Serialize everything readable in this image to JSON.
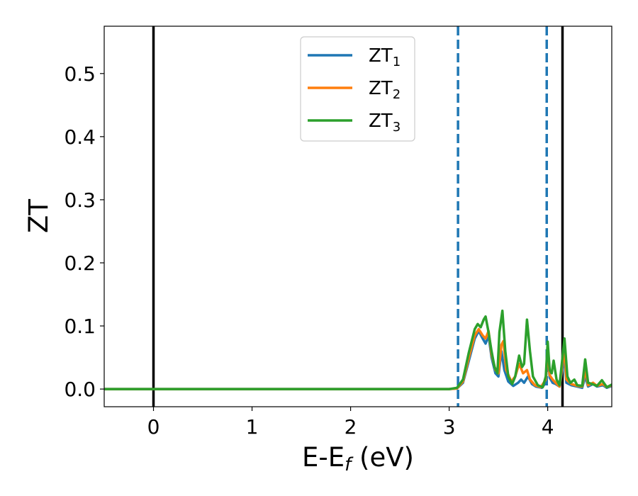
{
  "chart_data": {
    "type": "line",
    "xlabel": "E-E",
    "xlabel_sub": "f",
    "xlabel_unit": " (eV)",
    "ylabel": "ZT",
    "xlim": [
      -0.5,
      4.65
    ],
    "ylim": [
      -0.028,
      0.575
    ],
    "x_ticks": [
      0,
      1,
      2,
      3,
      4
    ],
    "x_tick_labels": [
      "0",
      "1",
      "2",
      "3",
      "4"
    ],
    "y_ticks": [
      0.0,
      0.1,
      0.2,
      0.3,
      0.4,
      0.5
    ],
    "y_tick_labels": [
      "0.0",
      "0.1",
      "0.2",
      "0.3",
      "0.4",
      "0.5"
    ],
    "grid": false,
    "legend_position": "top-center",
    "vertical_lines": [
      {
        "x": 0.0,
        "style": "solid",
        "color": "#000000"
      },
      {
        "x": 4.15,
        "style": "solid",
        "color": "#000000"
      },
      {
        "x": 3.09,
        "style": "dashed",
        "color": "#1f77b4"
      },
      {
        "x": 3.99,
        "style": "dashed",
        "color": "#1f77b4"
      }
    ],
    "series": [
      {
        "name": "ZT",
        "name_sub": "1",
        "color": "#1f77b4",
        "points": [
          [
            -0.5,
            0
          ],
          [
            3.0,
            0
          ],
          [
            3.08,
            0.001
          ],
          [
            3.14,
            0.01
          ],
          [
            3.2,
            0.045
          ],
          [
            3.26,
            0.08
          ],
          [
            3.3,
            0.092
          ],
          [
            3.34,
            0.08
          ],
          [
            3.37,
            0.072
          ],
          [
            3.4,
            0.085
          ],
          [
            3.43,
            0.05
          ],
          [
            3.47,
            0.025
          ],
          [
            3.5,
            0.02
          ],
          [
            3.53,
            0.06
          ],
          [
            3.56,
            0.03
          ],
          [
            3.6,
            0.012
          ],
          [
            3.65,
            0.005
          ],
          [
            3.7,
            0.01
          ],
          [
            3.73,
            0.015
          ],
          [
            3.76,
            0.01
          ],
          [
            3.8,
            0.02
          ],
          [
            3.84,
            0.008
          ],
          [
            3.88,
            0.004
          ],
          [
            3.94,
            0.002
          ],
          [
            3.98,
            0.01
          ],
          [
            4.0,
            0.06
          ],
          [
            4.02,
            0.018
          ],
          [
            4.05,
            0.01
          ],
          [
            4.08,
            0.008
          ],
          [
            4.12,
            0.004
          ],
          [
            4.17,
            0.05
          ],
          [
            4.19,
            0.01
          ],
          [
            4.24,
            0.006
          ],
          [
            4.3,
            0.004
          ],
          [
            4.35,
            0.002
          ],
          [
            4.38,
            0.02
          ],
          [
            4.41,
            0.004
          ],
          [
            4.46,
            0.008
          ],
          [
            4.5,
            0.004
          ],
          [
            4.56,
            0.006
          ],
          [
            4.6,
            0.002
          ],
          [
            4.65,
            0.005
          ]
        ]
      },
      {
        "name": "ZT",
        "name_sub": "2",
        "color": "#ff7f0e",
        "points": [
          [
            -0.5,
            0
          ],
          [
            3.0,
            0
          ],
          [
            3.08,
            0.001
          ],
          [
            3.14,
            0.012
          ],
          [
            3.2,
            0.05
          ],
          [
            3.26,
            0.085
          ],
          [
            3.3,
            0.095
          ],
          [
            3.34,
            0.085
          ],
          [
            3.37,
            0.08
          ],
          [
            3.4,
            0.092
          ],
          [
            3.43,
            0.055
          ],
          [
            3.47,
            0.03
          ],
          [
            3.5,
            0.025
          ],
          [
            3.53,
            0.07
          ],
          [
            3.55,
            0.076
          ],
          [
            3.58,
            0.03
          ],
          [
            3.63,
            0.012
          ],
          [
            3.67,
            0.02
          ],
          [
            3.71,
            0.04
          ],
          [
            3.75,
            0.025
          ],
          [
            3.79,
            0.03
          ],
          [
            3.82,
            0.015
          ],
          [
            3.87,
            0.006
          ],
          [
            3.93,
            0.003
          ],
          [
            3.98,
            0.015
          ],
          [
            4.0,
            0.065
          ],
          [
            4.02,
            0.022
          ],
          [
            4.05,
            0.015
          ],
          [
            4.08,
            0.01
          ],
          [
            4.12,
            0.004
          ],
          [
            4.17,
            0.065
          ],
          [
            4.19,
            0.015
          ],
          [
            4.24,
            0.008
          ],
          [
            4.3,
            0.005
          ],
          [
            4.35,
            0.004
          ],
          [
            4.38,
            0.03
          ],
          [
            4.41,
            0.006
          ],
          [
            4.46,
            0.01
          ],
          [
            4.5,
            0.005
          ],
          [
            4.56,
            0.008
          ],
          [
            4.6,
            0.003
          ],
          [
            4.65,
            0.006
          ]
        ]
      },
      {
        "name": "ZT",
        "name_sub": "3",
        "color": "#2ca02c",
        "points": [
          [
            -0.5,
            0
          ],
          [
            3.0,
            0
          ],
          [
            3.08,
            0.002
          ],
          [
            3.14,
            0.015
          ],
          [
            3.2,
            0.058
          ],
          [
            3.26,
            0.095
          ],
          [
            3.29,
            0.103
          ],
          [
            3.32,
            0.098
          ],
          [
            3.35,
            0.11
          ],
          [
            3.37,
            0.115
          ],
          [
            3.4,
            0.09
          ],
          [
            3.43,
            0.06
          ],
          [
            3.46,
            0.035
          ],
          [
            3.49,
            0.025
          ],
          [
            3.51,
            0.09
          ],
          [
            3.54,
            0.124
          ],
          [
            3.57,
            0.06
          ],
          [
            3.6,
            0.02
          ],
          [
            3.64,
            0.008
          ],
          [
            3.67,
            0.02
          ],
          [
            3.71,
            0.053
          ],
          [
            3.74,
            0.035
          ],
          [
            3.76,
            0.04
          ],
          [
            3.79,
            0.11
          ],
          [
            3.82,
            0.06
          ],
          [
            3.85,
            0.02
          ],
          [
            3.9,
            0.006
          ],
          [
            3.95,
            0.003
          ],
          [
            3.98,
            0.02
          ],
          [
            4.0,
            0.075
          ],
          [
            4.02,
            0.03
          ],
          [
            4.04,
            0.025
          ],
          [
            4.06,
            0.045
          ],
          [
            4.09,
            0.015
          ],
          [
            4.12,
            0.006
          ],
          [
            4.17,
            0.08
          ],
          [
            4.2,
            0.02
          ],
          [
            4.23,
            0.01
          ],
          [
            4.27,
            0.015
          ],
          [
            4.3,
            0.006
          ],
          [
            4.35,
            0.005
          ],
          [
            4.38,
            0.047
          ],
          [
            4.41,
            0.01
          ],
          [
            4.45,
            0.008
          ],
          [
            4.5,
            0.005
          ],
          [
            4.55,
            0.014
          ],
          [
            4.6,
            0.003
          ],
          [
            4.65,
            0.007
          ]
        ]
      }
    ]
  }
}
